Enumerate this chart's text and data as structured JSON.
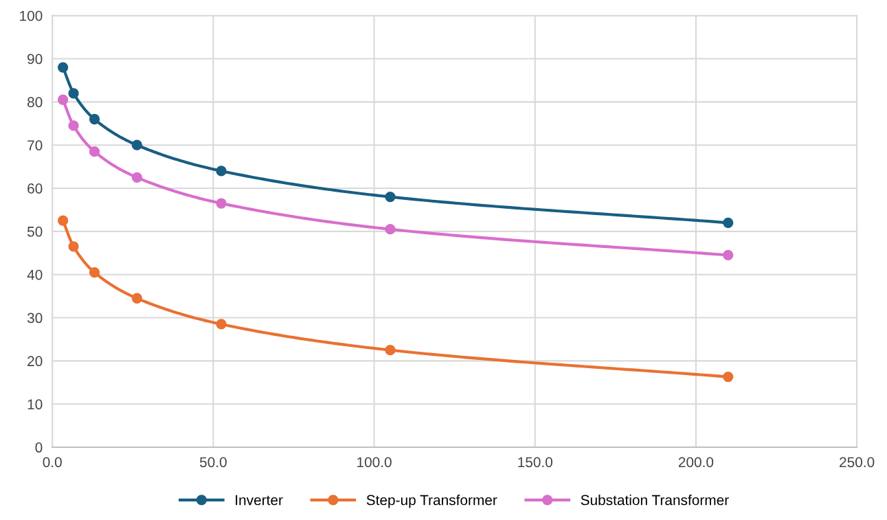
{
  "chart_data": {
    "type": "line",
    "x": [
      3.3,
      6.6,
      13.1,
      26.3,
      52.5,
      105,
      210
    ],
    "series": [
      {
        "name": "Inverter",
        "color": "#195e83",
        "values": [
          88,
          82,
          76,
          70,
          64,
          58,
          52
        ]
      },
      {
        "name": "Step-up Transformer",
        "color": "#e97132",
        "values": [
          52.5,
          46.5,
          40.5,
          34.5,
          28.5,
          22.5,
          16.3
        ]
      },
      {
        "name": "Substation Transformer",
        "color": "#d86ecc",
        "values": [
          80.5,
          74.5,
          68.5,
          62.5,
          56.5,
          50.5,
          44.5
        ]
      }
    ],
    "xlim": [
      0,
      250
    ],
    "xticks": [
      {
        "value": 0,
        "label": "0.0"
      },
      {
        "value": 50,
        "label": "50.0"
      },
      {
        "value": 100,
        "label": "100.0"
      },
      {
        "value": 150,
        "label": "150.0"
      },
      {
        "value": 200,
        "label": "200.0"
      },
      {
        "value": 250,
        "label": "250.0"
      }
    ],
    "ylim": [
      0,
      100
    ],
    "yticks": [
      0,
      10,
      20,
      30,
      40,
      50,
      60,
      70,
      80,
      90,
      100
    ],
    "grid": true,
    "legend": "bottom",
    "marker": "circle",
    "line_style": "solid"
  }
}
